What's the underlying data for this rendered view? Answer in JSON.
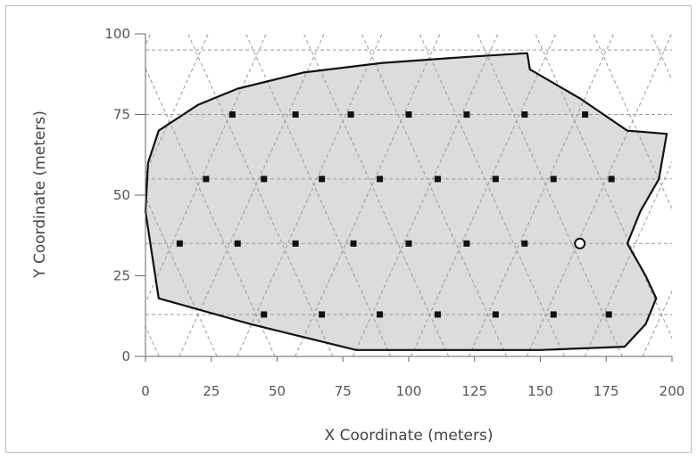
{
  "chart_data": {
    "type": "scatter",
    "xlabel": "X Coordinate (meters)",
    "ylabel": "Y Coordinate (meters)",
    "xlim": [
      0,
      200
    ],
    "ylim": [
      0,
      100
    ],
    "xticks": [
      0,
      25,
      50,
      75,
      100,
      125,
      150,
      175,
      200
    ],
    "yticks": [
      0,
      25,
      50,
      75,
      100
    ],
    "grid": "dashed triangular lattice (horizontal lines at y = 13, 35, 55, 75, 95 with diagonal lines)",
    "boundary_polygon": [
      [
        1,
        60
      ],
      [
        5,
        70
      ],
      [
        20,
        78
      ],
      [
        35,
        83
      ],
      [
        60,
        88
      ],
      [
        90,
        91
      ],
      [
        125,
        93
      ],
      [
        145,
        94
      ],
      [
        146,
        89
      ],
      [
        165,
        80
      ],
      [
        183,
        70
      ],
      [
        198,
        69
      ],
      [
        195,
        55
      ],
      [
        188,
        45
      ],
      [
        183,
        35
      ],
      [
        190,
        25
      ],
      [
        194,
        18
      ],
      [
        190,
        10
      ],
      [
        182,
        3
      ],
      [
        150,
        2
      ],
      [
        80,
        2
      ],
      [
        40,
        10
      ],
      [
        5,
        18
      ],
      [
        0,
        45
      ]
    ],
    "points_filled": [
      [
        33,
        75
      ],
      [
        57,
        75
      ],
      [
        78,
        75
      ],
      [
        100,
        75
      ],
      [
        122,
        75
      ],
      [
        144,
        75
      ],
      [
        167,
        75
      ],
      [
        23,
        55
      ],
      [
        45,
        55
      ],
      [
        67,
        55
      ],
      [
        89,
        55
      ],
      [
        111,
        55
      ],
      [
        133,
        55
      ],
      [
        155,
        55
      ],
      [
        177,
        55
      ],
      [
        13,
        35
      ],
      [
        35,
        35
      ],
      [
        57,
        35
      ],
      [
        79,
        35
      ],
      [
        100,
        35
      ],
      [
        122,
        35
      ],
      [
        144,
        35
      ],
      [
        45,
        13
      ],
      [
        67,
        13
      ],
      [
        89,
        13
      ],
      [
        111,
        13
      ],
      [
        133,
        13
      ],
      [
        155,
        13
      ],
      [
        176,
        13
      ]
    ],
    "points_open": [
      [
        165,
        35
      ]
    ],
    "colors": {
      "fill": "#dcdcdc",
      "boundary": "#111111",
      "point": "#111111",
      "grid": "#999999"
    }
  }
}
